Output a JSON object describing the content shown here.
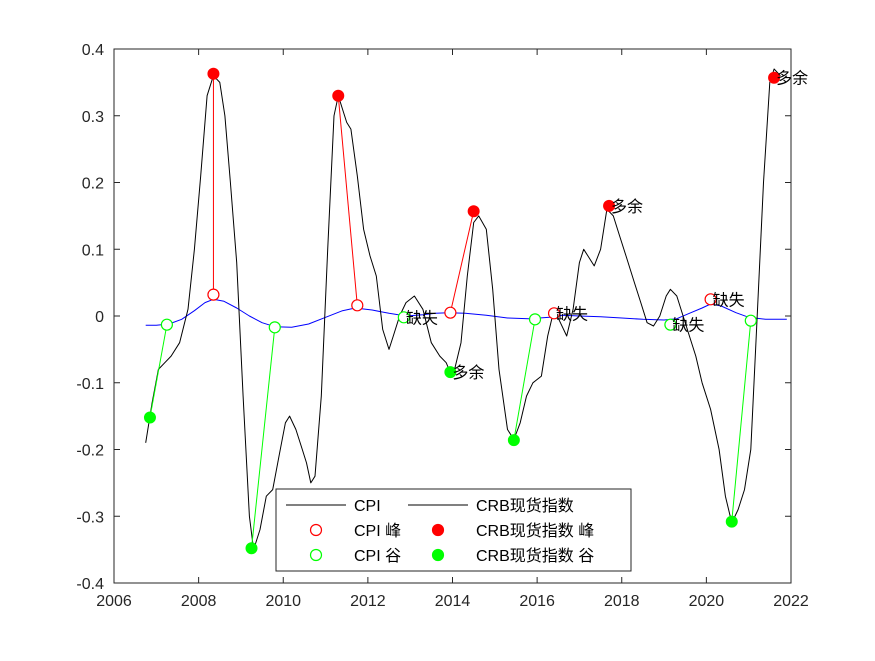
{
  "chart_data": {
    "type": "line",
    "xlim": [
      2006,
      2022
    ],
    "ylim": [
      -0.4,
      0.4
    ],
    "x_ticks": [
      2006,
      2008,
      2010,
      2012,
      2014,
      2016,
      2018,
      2020,
      2022
    ],
    "y_ticks": [
      -0.4,
      -0.3,
      -0.2,
      -0.1,
      0,
      0.1,
      0.2,
      0.3,
      0.4
    ],
    "colors": {
      "cpi_line": "#0000ff",
      "crb_line": "#000000",
      "peak": "#ff0000",
      "trough": "#00ff00"
    },
    "series": [
      {
        "name": "CPI",
        "points": [
          [
            2006.75,
            -0.014
          ],
          [
            2007.0,
            -0.014
          ],
          [
            2007.3,
            -0.012
          ],
          [
            2007.6,
            -0.005
          ],
          [
            2007.9,
            0.008
          ],
          [
            2008.15,
            0.02
          ],
          [
            2008.35,
            0.025
          ],
          [
            2008.6,
            0.022
          ],
          [
            2008.9,
            0.012
          ],
          [
            2009.2,
            0.0
          ],
          [
            2009.5,
            -0.01
          ],
          [
            2009.8,
            -0.016
          ],
          [
            2010.2,
            -0.017
          ],
          [
            2010.6,
            -0.012
          ],
          [
            2011.0,
            -0.002
          ],
          [
            2011.4,
            0.008
          ],
          [
            2011.7,
            0.012
          ],
          [
            2012.1,
            0.009
          ],
          [
            2012.5,
            0.004
          ],
          [
            2012.9,
            0.0
          ],
          [
            2013.3,
            0.002
          ],
          [
            2013.6,
            0.004
          ],
          [
            2013.9,
            0.005
          ],
          [
            2014.3,
            0.004
          ],
          [
            2014.8,
            0.001
          ],
          [
            2015.3,
            -0.003
          ],
          [
            2015.8,
            -0.004
          ],
          [
            2016.3,
            -0.002
          ],
          [
            2016.6,
            0.001
          ],
          [
            2017.0,
            0.0
          ],
          [
            2017.5,
            -0.001
          ],
          [
            2018.0,
            -0.003
          ],
          [
            2018.5,
            -0.005
          ],
          [
            2019.0,
            -0.006
          ],
          [
            2019.3,
            -0.004
          ],
          [
            2019.6,
            0.004
          ],
          [
            2019.9,
            0.012
          ],
          [
            2020.1,
            0.018
          ],
          [
            2020.35,
            0.015
          ],
          [
            2020.7,
            0.005
          ],
          [
            2021.0,
            -0.002
          ],
          [
            2021.4,
            -0.005
          ],
          [
            2021.9,
            -0.005
          ]
        ]
      },
      {
        "name": "CRB现货指数",
        "points": [
          [
            2006.75,
            -0.19
          ],
          [
            2006.9,
            -0.13
          ],
          [
            2007.05,
            -0.08
          ],
          [
            2007.2,
            -0.07
          ],
          [
            2007.35,
            -0.06
          ],
          [
            2007.55,
            -0.04
          ],
          [
            2007.75,
            0.01
          ],
          [
            2007.9,
            0.1
          ],
          [
            2008.05,
            0.21
          ],
          [
            2008.2,
            0.33
          ],
          [
            2008.35,
            0.36
          ],
          [
            2008.5,
            0.35
          ],
          [
            2008.62,
            0.3
          ],
          [
            2008.75,
            0.2
          ],
          [
            2008.9,
            0.08
          ],
          [
            2009.05,
            -0.12
          ],
          [
            2009.2,
            -0.3
          ],
          [
            2009.3,
            -0.35
          ],
          [
            2009.45,
            -0.32
          ],
          [
            2009.6,
            -0.27
          ],
          [
            2009.75,
            -0.26
          ],
          [
            2009.9,
            -0.21
          ],
          [
            2010.05,
            -0.16
          ],
          [
            2010.15,
            -0.15
          ],
          [
            2010.3,
            -0.17
          ],
          [
            2010.45,
            -0.2
          ],
          [
            2010.55,
            -0.22
          ],
          [
            2010.65,
            -0.25
          ],
          [
            2010.75,
            -0.24
          ],
          [
            2010.9,
            -0.12
          ],
          [
            2011.05,
            0.1
          ],
          [
            2011.2,
            0.3
          ],
          [
            2011.3,
            0.33
          ],
          [
            2011.4,
            0.31
          ],
          [
            2011.5,
            0.29
          ],
          [
            2011.6,
            0.28
          ],
          [
            2011.75,
            0.21
          ],
          [
            2011.9,
            0.13
          ],
          [
            2012.05,
            0.09
          ],
          [
            2012.2,
            0.06
          ],
          [
            2012.35,
            -0.02
          ],
          [
            2012.5,
            -0.05
          ],
          [
            2012.6,
            -0.03
          ],
          [
            2012.75,
            0.0
          ],
          [
            2012.9,
            0.02
          ],
          [
            2013.1,
            0.03
          ],
          [
            2013.3,
            0.01
          ],
          [
            2013.5,
            -0.04
          ],
          [
            2013.7,
            -0.06
          ],
          [
            2013.85,
            -0.07
          ],
          [
            2013.95,
            -0.085
          ],
          [
            2014.05,
            -0.08
          ],
          [
            2014.2,
            -0.04
          ],
          [
            2014.35,
            0.06
          ],
          [
            2014.5,
            0.14
          ],
          [
            2014.62,
            0.15
          ],
          [
            2014.8,
            0.13
          ],
          [
            2014.95,
            0.04
          ],
          [
            2015.1,
            -0.08
          ],
          [
            2015.3,
            -0.17
          ],
          [
            2015.45,
            -0.185
          ],
          [
            2015.6,
            -0.16
          ],
          [
            2015.75,
            -0.12
          ],
          [
            2015.9,
            -0.1
          ],
          [
            2016.1,
            -0.09
          ],
          [
            2016.25,
            -0.03
          ],
          [
            2016.4,
            0.01
          ],
          [
            2016.55,
            -0.01
          ],
          [
            2016.7,
            -0.03
          ],
          [
            2016.85,
            0.01
          ],
          [
            2017.0,
            0.08
          ],
          [
            2017.1,
            0.1
          ],
          [
            2017.2,
            0.09
          ],
          [
            2017.35,
            0.075
          ],
          [
            2017.5,
            0.1
          ],
          [
            2017.65,
            0.16
          ],
          [
            2017.8,
            0.15
          ],
          [
            2017.95,
            0.12
          ],
          [
            2018.1,
            0.09
          ],
          [
            2018.3,
            0.05
          ],
          [
            2018.45,
            0.02
          ],
          [
            2018.6,
            -0.01
          ],
          [
            2018.75,
            -0.015
          ],
          [
            2018.9,
            0.0
          ],
          [
            2019.05,
            0.03
          ],
          [
            2019.15,
            0.04
          ],
          [
            2019.3,
            0.03
          ],
          [
            2019.45,
            0.0
          ],
          [
            2019.6,
            -0.03
          ],
          [
            2019.75,
            -0.06
          ],
          [
            2019.9,
            -0.1
          ],
          [
            2020.1,
            -0.14
          ],
          [
            2020.3,
            -0.2
          ],
          [
            2020.45,
            -0.27
          ],
          [
            2020.6,
            -0.31
          ],
          [
            2020.75,
            -0.29
          ],
          [
            2020.9,
            -0.26
          ],
          [
            2021.05,
            -0.2
          ],
          [
            2021.2,
            0.0
          ],
          [
            2021.35,
            0.2
          ],
          [
            2021.5,
            0.35
          ],
          [
            2021.6,
            0.37
          ],
          [
            2021.75,
            0.36
          ]
        ]
      }
    ],
    "markers": {
      "cpi_peaks": [
        [
          2008.35,
          0.032
        ],
        [
          2011.75,
          0.016
        ],
        [
          2013.95,
          0.005
        ],
        [
          2016.4,
          0.004
        ],
        [
          2020.1,
          0.025
        ]
      ],
      "cpi_troughs": [
        [
          2007.25,
          -0.013
        ],
        [
          2009.8,
          -0.017
        ],
        [
          2012.85,
          -0.002
        ],
        [
          2015.95,
          -0.005
        ],
        [
          2019.15,
          -0.013
        ],
        [
          2021.05,
          -0.007
        ]
      ],
      "crb_peaks": [
        [
          2008.35,
          0.363
        ],
        [
          2011.3,
          0.33
        ],
        [
          2014.5,
          0.157
        ],
        [
          2017.7,
          0.165
        ],
        [
          2021.6,
          0.357
        ]
      ],
      "crb_troughs": [
        [
          2006.85,
          -0.152
        ],
        [
          2009.25,
          -0.348
        ],
        [
          2013.95,
          -0.084
        ],
        [
          2015.45,
          -0.186
        ],
        [
          2020.6,
          -0.308
        ]
      ]
    },
    "peak_links": [
      [
        [
          2008.35,
          0.032
        ],
        [
          2008.35,
          0.363
        ]
      ],
      [
        [
          2011.75,
          0.016
        ],
        [
          2011.3,
          0.33
        ]
      ],
      [
        [
          2013.95,
          0.005
        ],
        [
          2014.5,
          0.157
        ]
      ]
    ],
    "trough_links": [
      [
        [
          2007.25,
          -0.013
        ],
        [
          2006.85,
          -0.152
        ]
      ],
      [
        [
          2009.8,
          -0.017
        ],
        [
          2009.25,
          -0.348
        ]
      ],
      [
        [
          2015.95,
          -0.005
        ],
        [
          2015.45,
          -0.186
        ]
      ],
      [
        [
          2021.05,
          -0.007
        ],
        [
          2020.6,
          -0.308
        ]
      ]
    ],
    "annotations": [
      {
        "text": "缺失",
        "x": 2012.85,
        "y": -0.002
      },
      {
        "text": "多余",
        "x": 2013.95,
        "y": -0.084
      },
      {
        "text": "缺失",
        "x": 2016.4,
        "y": 0.004
      },
      {
        "text": "多余",
        "x": 2017.7,
        "y": 0.165
      },
      {
        "text": "缺失",
        "x": 2019.15,
        "y": -0.013
      },
      {
        "text": "缺失",
        "x": 2020.1,
        "y": 0.025
      },
      {
        "text": "多余",
        "x": 2021.6,
        "y": 0.357
      }
    ],
    "legend": {
      "placement": "bottom-center",
      "entries": [
        {
          "label": "CPI",
          "kind": "line",
          "color": "#000000"
        },
        {
          "label": "CRB现货指数",
          "kind": "line",
          "color": "#000000"
        },
        {
          "label": "CPI 峰",
          "kind": "open-circle",
          "color": "#ff0000"
        },
        {
          "label": "CRB现货指数 峰",
          "kind": "filled-circle",
          "color": "#ff0000"
        },
        {
          "label": "CPI 谷",
          "kind": "open-circle",
          "color": "#00ff00"
        },
        {
          "label": "CRB现货指数 谷",
          "kind": "filled-circle",
          "color": "#00ff00"
        }
      ]
    },
    "grid": false
  }
}
